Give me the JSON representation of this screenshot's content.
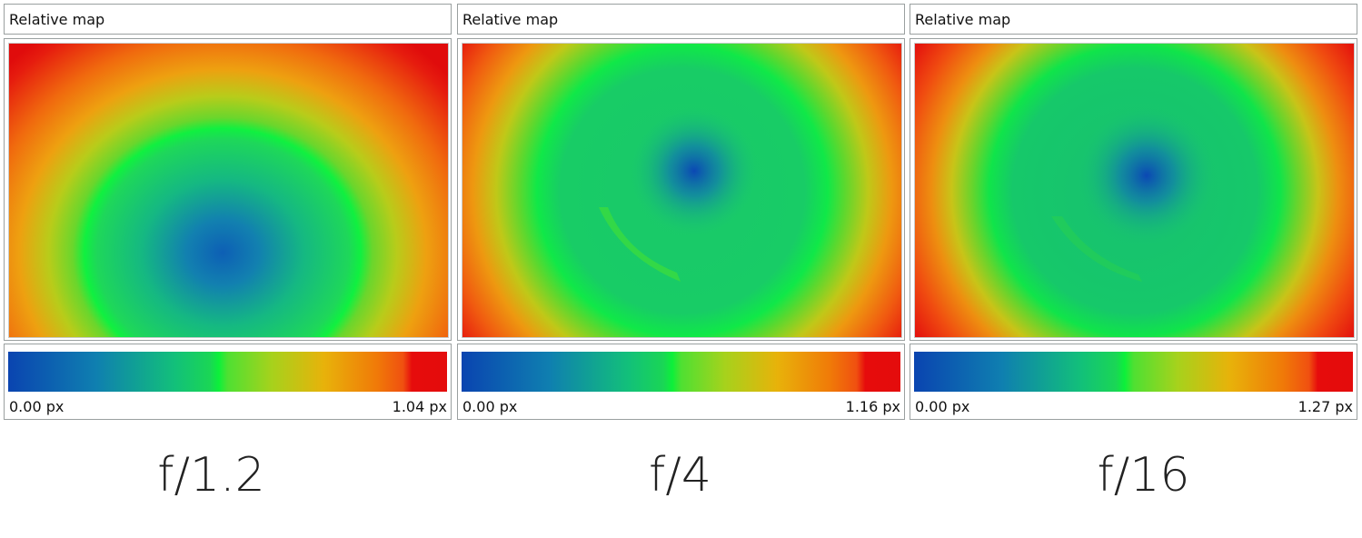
{
  "panels": [
    {
      "title": "Relative map",
      "min_label": "0.00 px",
      "max_label": "1.04 px",
      "aperture": "f/1.2",
      "map_center_icon": "deviation-heatmap"
    },
    {
      "title": "Relative map",
      "min_label": "0.00 px",
      "max_label": "1.16 px",
      "aperture": "f/4",
      "map_center_icon": "deviation-heatmap"
    },
    {
      "title": "Relative map",
      "min_label": "0.00 px",
      "max_label": "1.27 px",
      "aperture": "f/16",
      "map_center_icon": "deviation-heatmap"
    }
  ],
  "colors": {
    "low": "#0a44b0",
    "mid": "#0cf03a",
    "high": "#e40c0c",
    "border": "#9aa0a0"
  }
}
